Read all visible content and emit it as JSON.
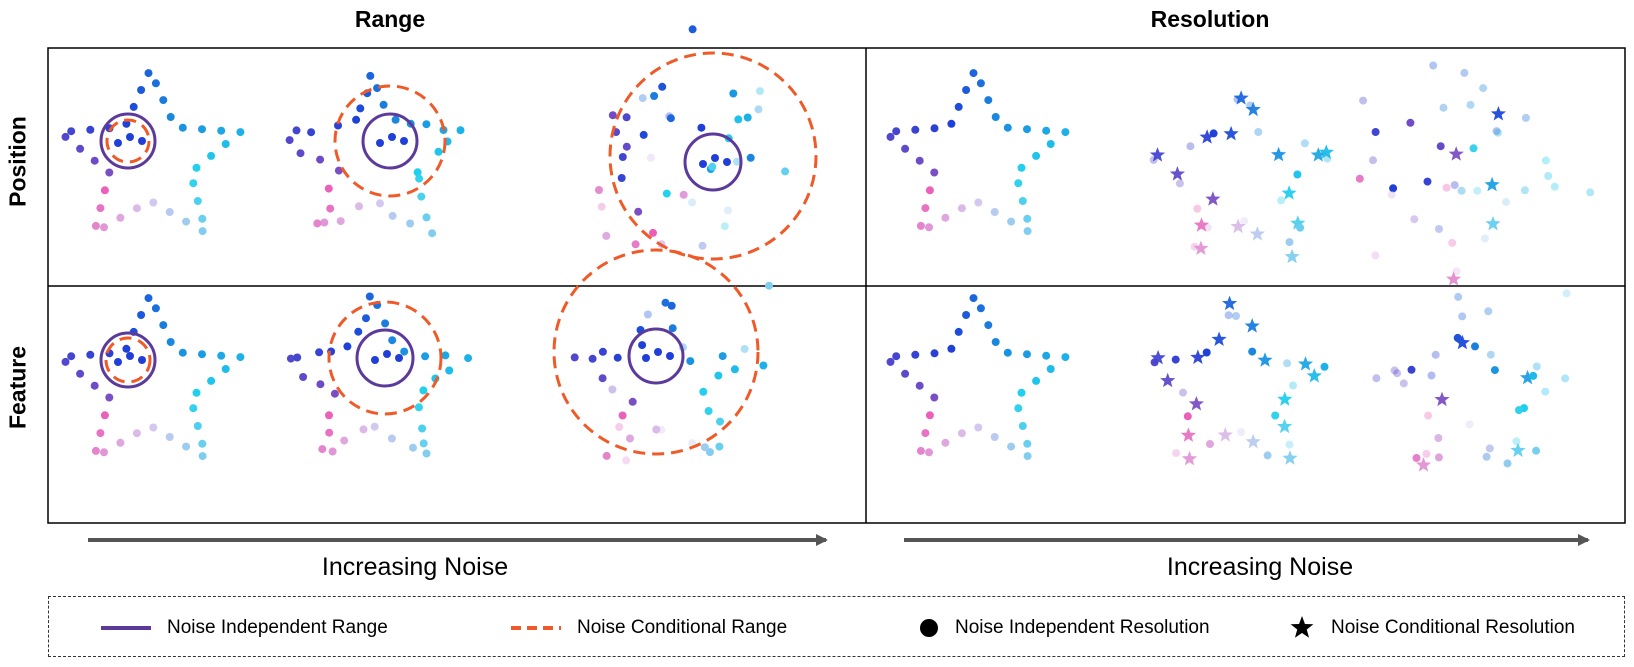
{
  "columns": [
    {
      "title": "Range"
    },
    {
      "title": "Resolution"
    }
  ],
  "rows": [
    {
      "title": "Position"
    },
    {
      "title": "Feature"
    }
  ],
  "arrows": [
    {
      "label": "Increasing Noise"
    },
    {
      "label": "Increasing Noise"
    }
  ],
  "legend": [
    {
      "label": "Noise Independent Range",
      "symbol": "solid-line",
      "color": "#5b3a9c"
    },
    {
      "label": "Noise Conditional Range",
      "symbol": "dashed-line",
      "color": "#f05a28"
    },
    {
      "label": "Noise Independent Resolution",
      "symbol": "dot",
      "color": "#000000"
    },
    {
      "label": "Noise Conditional Resolution",
      "symbol": "star",
      "color": "#000000"
    }
  ],
  "colors": {
    "solid_circle": "#5b3a9c",
    "dashed_circle": "#f05a28",
    "gradient": [
      "#7b4fc4",
      "#1f3fd8",
      "#1a8fe0",
      "#22d3ee",
      "#d8c8f0",
      "#ee4fb0"
    ]
  }
}
